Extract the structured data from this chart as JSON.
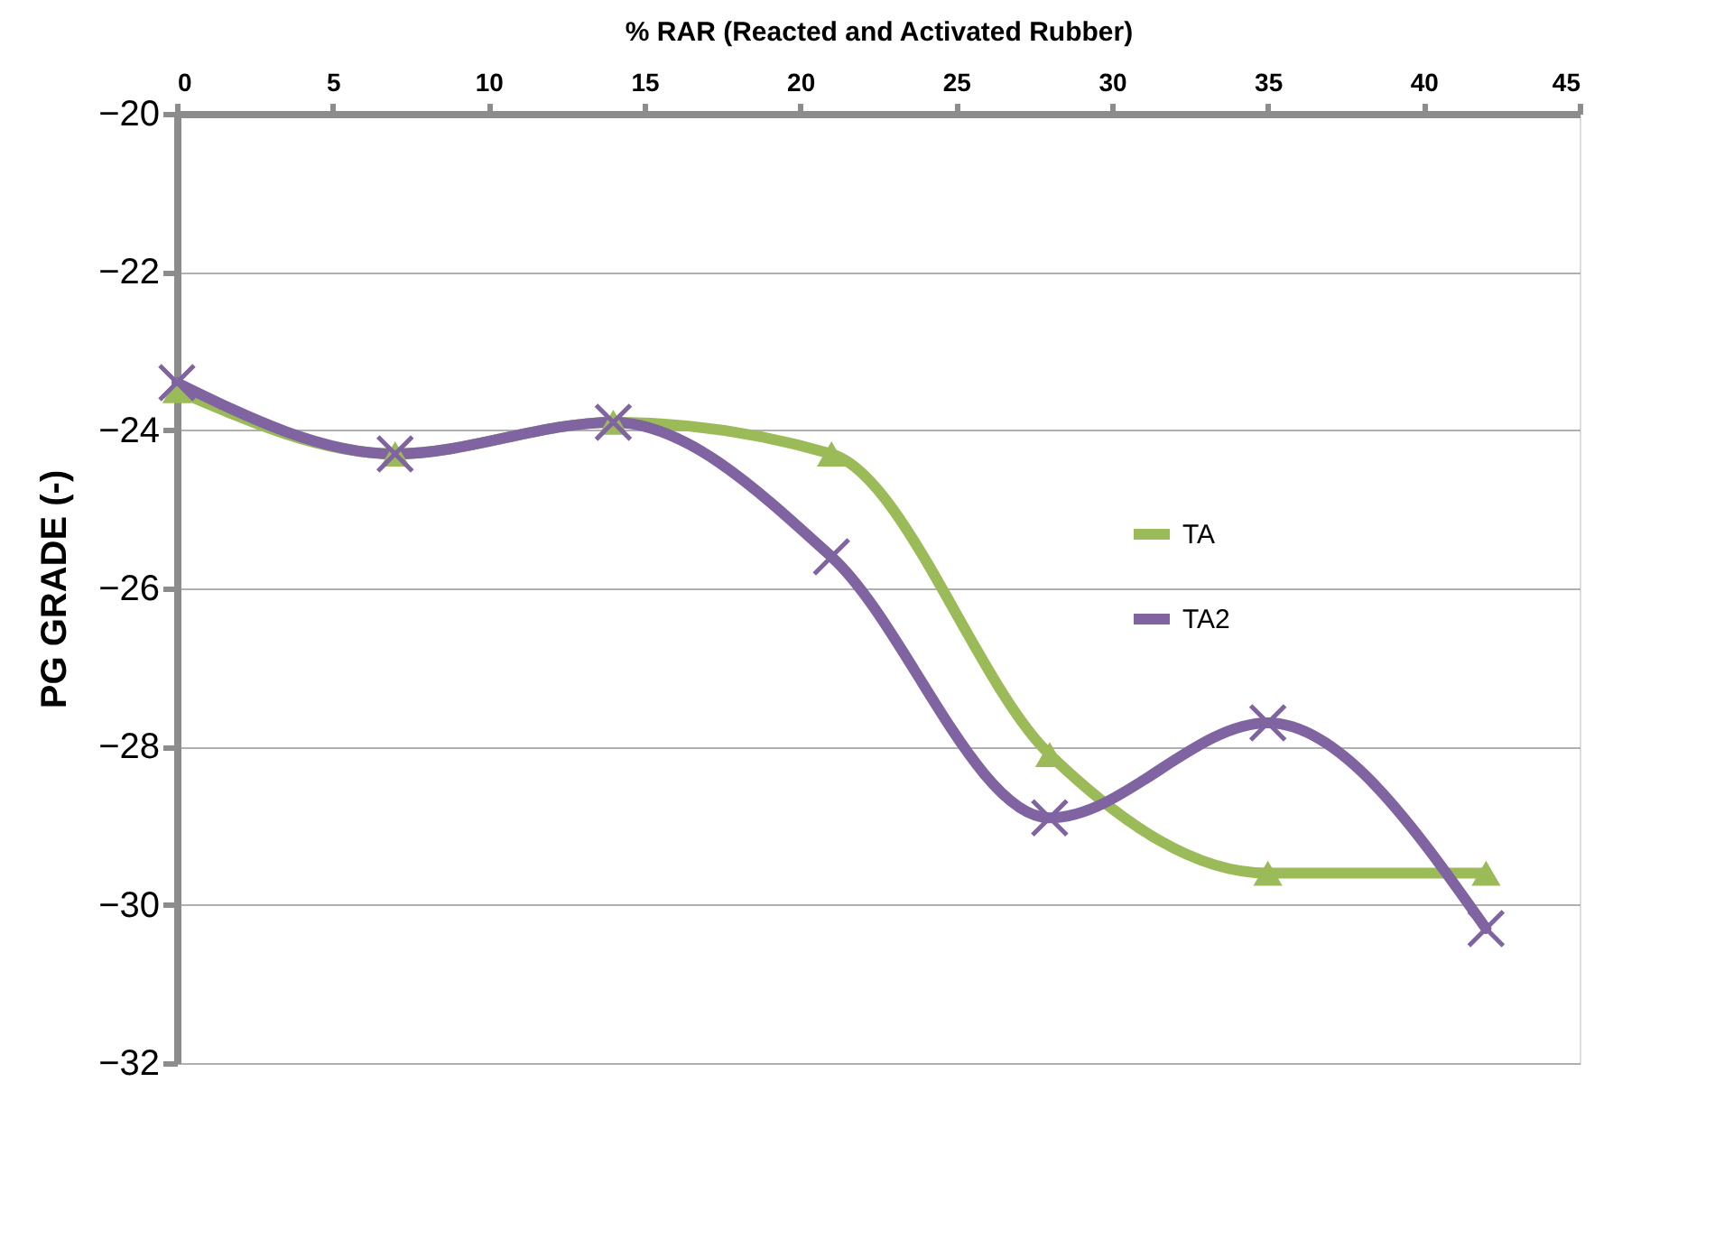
{
  "chart_data": {
    "type": "line",
    "xlabel": "% RAR (Reacted and Activated Rubber)",
    "ylabel": "PG GRADE (-)",
    "x": [
      0,
      7,
      14,
      21,
      28,
      35,
      42
    ],
    "series": [
      {
        "name": "TA",
        "color": "#9bbb59",
        "marker": "triangle",
        "values": [
          -23.5,
          -24.3,
          -23.9,
          -24.3,
          -28.1,
          -29.6,
          -29.6
        ]
      },
      {
        "name": "TA2",
        "color": "#8064a2",
        "marker": "cross",
        "values": [
          -23.4,
          -24.3,
          -23.9,
          -25.6,
          -28.9,
          -27.7,
          -30.3
        ]
      }
    ],
    "xlim": [
      0,
      45
    ],
    "xticks": [
      0,
      5,
      10,
      15,
      20,
      25,
      30,
      35,
      40,
      45
    ],
    "ylim": [
      -32,
      -20
    ],
    "yticks": [
      -32,
      -30,
      -28,
      -26,
      -24,
      -22,
      -20
    ],
    "grid": "y",
    "legend": "right",
    "line_style": "solid"
  }
}
